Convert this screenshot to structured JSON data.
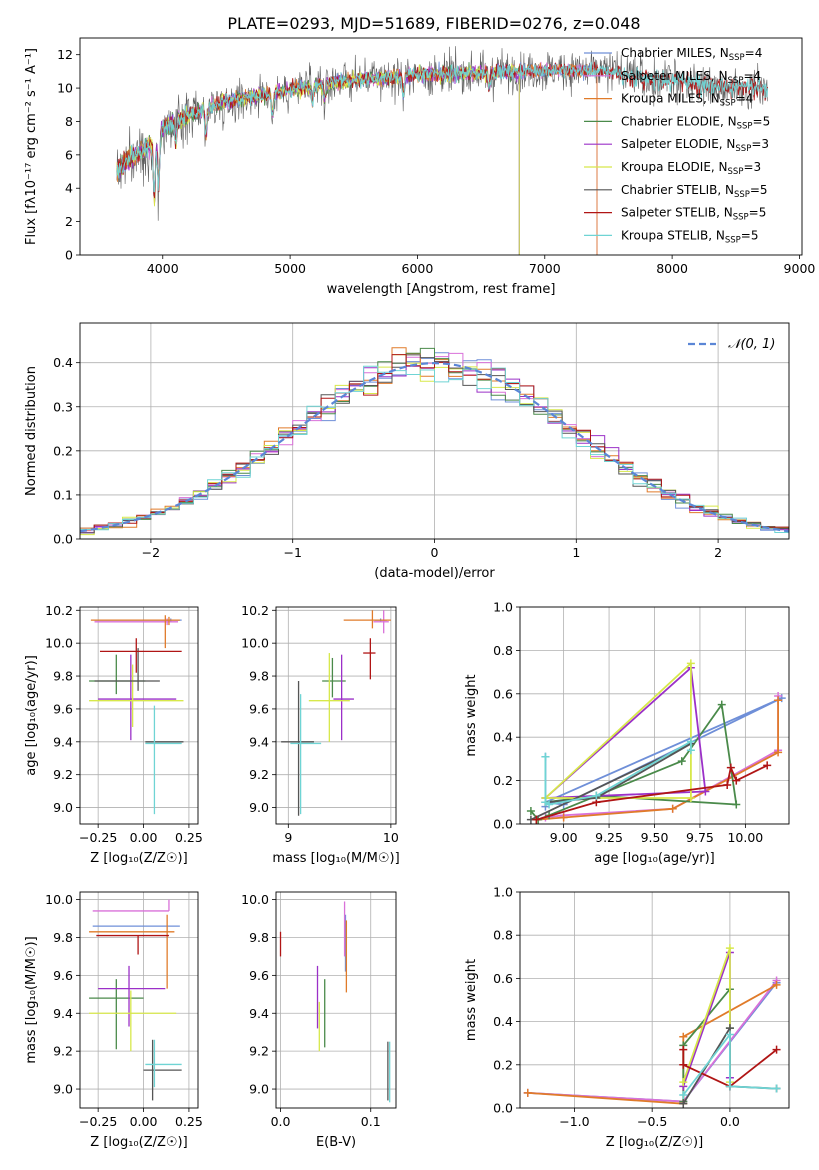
{
  "title": "PLATE=0293, MJD=51689, FIBERID=0276, z=0.048",
  "colors": {
    "Chabrier MILES": "#6f8fd8",
    "Salpeter MILES": "#d971d9",
    "Kroupa MILES": "#e07b2a",
    "Chabrier ELODIE": "#4a8a4a",
    "Salpeter ELODIE": "#9b30c8",
    "Kroupa ELODIE": "#d7e84a",
    "Chabrier STELIB": "#555555",
    "Salpeter STELIB": "#b01515",
    "Kroupa STELIB": "#6fd4d4"
  },
  "chart_data": [
    {
      "id": "spectrum",
      "type": "line",
      "title": "PLATE=0293, MJD=51689, FIBERID=0276, z=0.048",
      "xlabel": "wavelength [Angstrom, rest frame]",
      "ylabel": "Flux [fλ10⁻¹⁷ erg cm⁻² s⁻¹ A⁻¹]",
      "xlim": [
        3350,
        9020
      ],
      "ylim": [
        0,
        13
      ],
      "xticks": [
        "4000",
        "5000",
        "6000",
        "7000",
        "8000",
        "9000"
      ],
      "yticks": [
        "0",
        "2",
        "4",
        "6",
        "8",
        "10",
        "12"
      ],
      "legend_position": "right",
      "legend": [
        "Chabrier MILES, N_SSP=4",
        "Salpeter MILES, N_SSP=4",
        "Kroupa MILES, N_SSP=4",
        "Chabrier ELODIE, N_SSP=5",
        "Salpeter ELODIE, N_SSP=3",
        "Kroupa ELODIE, N_SSP=3",
        "Chabrier STELIB, N_SSP=5",
        "Salpeter STELIB, N_SSP=5",
        "Kroupa STELIB, N_SSP=5"
      ],
      "continuum": {
        "x": [
          3640,
          3700,
          3800,
          3900,
          4000,
          4200,
          4500,
          5000,
          5500,
          6000,
          6500,
          7000,
          7500,
          8000,
          8500,
          8750
        ],
        "y": [
          5.0,
          5.5,
          6.0,
          6.6,
          7.6,
          8.4,
          9.2,
          9.9,
          10.5,
          10.8,
          10.9,
          11.1,
          11.0,
          10.7,
          10.3,
          10.1
        ]
      }
    },
    {
      "id": "residuals",
      "type": "line",
      "xlabel": "(data-model)/error",
      "ylabel": "Normed distribution",
      "xlim": [
        -2.5,
        2.5
      ],
      "ylim": [
        0,
        0.49
      ],
      "xticks": [
        "-2",
        "-1",
        "0",
        "1",
        "2"
      ],
      "yticks": [
        "0.0",
        "0.1",
        "0.2",
        "0.3",
        "0.4"
      ],
      "legend": "𝒩(0, 1)",
      "legend_position": "top-right",
      "grid": true,
      "bin_width": 0.1
    },
    {
      "id": "age-vs-Z",
      "type": "scatter",
      "xlabel": "Z [log₁₀(Z/Z☉)]",
      "ylabel": "age  [log₁₀(age/yr)]",
      "xlim": [
        -0.35,
        0.3
      ],
      "ylim": [
        8.9,
        10.22
      ],
      "xticks": [
        "-0.25",
        "0.00",
        "0.25"
      ],
      "yticks": [
        "9.0",
        "9.2",
        "9.4",
        "9.6",
        "9.8",
        "10.0",
        "10.2"
      ],
      "grid": true,
      "points": [
        {
          "series": "Chabrier MILES",
          "x": 0.15,
          "y": 10.14,
          "xerr": [
            0.42,
            0.06
          ],
          "yerr": [
            0.01,
            0.01
          ]
        },
        {
          "series": "Salpeter MILES",
          "x": 0.13,
          "y": 10.13,
          "xerr": [
            0.4,
            0.06
          ],
          "yerr": [
            0.02,
            0.02
          ]
        },
        {
          "series": "Kroupa MILES",
          "x": 0.14,
          "y": 10.14,
          "xerr": [
            0.43,
            0.06
          ],
          "yerr": [
            0.03,
            0.02
          ]
        },
        {
          "series": "Kroupa MILES",
          "x": 0.12,
          "y": 10.13,
          "xerr": [
            0.0,
            0.0
          ],
          "yerr": [
            0.16,
            0.04
          ]
        },
        {
          "series": "Chabrier ELODIE",
          "x": -0.15,
          "y": 9.77,
          "xerr": [
            0.15,
            0.16
          ],
          "yerr": [
            0.08,
            0.16
          ]
        },
        {
          "series": "Salpeter ELODIE",
          "x": -0.07,
          "y": 9.66,
          "xerr": [
            0.18,
            0.25
          ],
          "yerr": [
            0.25,
            0.27
          ]
        },
        {
          "series": "Kroupa ELODIE",
          "x": -0.06,
          "y": 9.65,
          "xerr": [
            0.24,
            0.28
          ],
          "yerr": [
            0.16,
            0.22
          ]
        },
        {
          "series": "Chabrier STELIB",
          "x": -0.03,
          "y": 9.77,
          "xerr": [
            0.24,
            0.12
          ],
          "yerr": [
            0.06,
            0.2
          ]
        },
        {
          "series": "Chabrier STELIB",
          "x": 0.05,
          "y": 9.4,
          "xerr": [
            0.04,
            0.17
          ],
          "yerr": [
            0.0,
            0.0
          ]
        },
        {
          "series": "Salpeter STELIB",
          "x": -0.04,
          "y": 9.95,
          "xerr": [
            0.2,
            0.25
          ],
          "yerr": [
            0.13,
            0.08
          ]
        },
        {
          "series": "Kroupa STELIB",
          "x": 0.06,
          "y": 9.39,
          "xerr": [
            0.05,
            0.15
          ],
          "yerr": [
            0.43,
            0.23
          ]
        }
      ]
    },
    {
      "id": "age-vs-mass",
      "type": "scatter",
      "xlabel": "mass [log₁₀(M/M☉)]",
      "ylabel": "",
      "xlim": [
        8.88,
        10.05
      ],
      "ylim": [
        8.9,
        10.22
      ],
      "xticks": [
        "9",
        "10"
      ],
      "yticks": [
        "9.0",
        "9.2",
        "9.4",
        "9.6",
        "9.8",
        "10.0",
        "10.2"
      ],
      "grid": true,
      "points": [
        {
          "series": "Chabrier MILES",
          "x": 9.9,
          "y": 10.14,
          "xerr": [
            0.06,
            0.06
          ],
          "yerr": [
            0.01,
            0.01
          ]
        },
        {
          "series": "Salpeter MILES",
          "x": 9.93,
          "y": 10.13,
          "xerr": [
            0.1,
            0.05
          ],
          "yerr": [
            0.07,
            0.07
          ]
        },
        {
          "series": "Kroupa MILES",
          "x": 9.82,
          "y": 10.14,
          "xerr": [
            0.28,
            0.18
          ],
          "yerr": [
            0.05,
            0.06
          ]
        },
        {
          "series": "Chabrier ELODIE",
          "x": 9.43,
          "y": 9.77,
          "xerr": [
            0.1,
            0.13
          ],
          "yerr": [
            0.1,
            0.14
          ]
        },
        {
          "series": "Salpeter ELODIE",
          "x": 9.52,
          "y": 9.66,
          "xerr": [
            0.08,
            0.12
          ],
          "yerr": [
            0.25,
            0.27
          ]
        },
        {
          "series": "Kroupa ELODIE",
          "x": 9.4,
          "y": 9.65,
          "xerr": [
            0.2,
            0.2
          ],
          "yerr": [
            0.25,
            0.29
          ]
        },
        {
          "series": "Chabrier STELIB",
          "x": 9.1,
          "y": 9.4,
          "xerr": [
            0.17,
            0.15
          ],
          "yerr": [
            0.45,
            0.37
          ]
        },
        {
          "series": "Salpeter STELIB",
          "x": 9.8,
          "y": 9.94,
          "xerr": [
            0.07,
            0.05
          ],
          "yerr": [
            0.16,
            0.09
          ]
        },
        {
          "series": "Kroupa STELIB",
          "x": 9.12,
          "y": 9.39,
          "xerr": [
            0.1,
            0.2
          ],
          "yerr": [
            0.43,
            0.3
          ]
        }
      ]
    },
    {
      "id": "weight-vs-age",
      "type": "line",
      "xlabel": "age  [log₁₀(age/yr)]",
      "ylabel": "mass weight",
      "xlim": [
        8.76,
        10.24
      ],
      "ylim": [
        0,
        1.0
      ],
      "xticks": [
        "9.00",
        "9.25",
        "9.50",
        "9.75",
        "10.00"
      ],
      "yticks": [
        "0.0",
        "0.2",
        "0.4",
        "0.6",
        "0.8",
        "1.0"
      ],
      "grid": true,
      "series": [
        {
          "name": "Chabrier MILES",
          "x": [
            8.9,
            8.9,
            8.9,
            9.0,
            10.2,
            8.9
          ],
          "y": [
            0.31,
            0.08,
            0.1,
            0.09,
            0.58,
            0.1
          ]
        },
        {
          "name": "Salpeter MILES",
          "x": [
            8.9,
            9.0,
            9.6,
            10.18,
            10.18
          ],
          "y": [
            0.03,
            0.04,
            0.07,
            0.34,
            0.59
          ]
        },
        {
          "name": "Kroupa MILES",
          "x": [
            8.85,
            9.0,
            9.6,
            10.18,
            10.18
          ],
          "y": [
            0.02,
            0.03,
            0.07,
            0.33,
            0.57
          ]
        },
        {
          "name": "Chabrier ELODIE",
          "x": [
            8.82,
            8.86,
            8.92,
            9.65,
            9.87,
            9.95,
            9.18,
            8.9
          ],
          "y": [
            0.06,
            0.02,
            0.04,
            0.29,
            0.55,
            0.09,
            0.13,
            0.1
          ]
        },
        {
          "name": "Salpeter ELODIE",
          "x": [
            8.9,
            9.7,
            9.78,
            8.9
          ],
          "y": [
            0.12,
            0.72,
            0.15,
            0.12
          ]
        },
        {
          "name": "Kroupa ELODIE",
          "x": [
            8.9,
            9.7,
            9.7,
            8.9
          ],
          "y": [
            0.12,
            0.74,
            0.12,
            0.12
          ]
        },
        {
          "name": "Chabrier STELIB",
          "x": [
            8.82,
            9.7,
            9.18,
            8.9
          ],
          "y": [
            0.02,
            0.37,
            0.12,
            0.1
          ]
        },
        {
          "name": "Salpeter STELIB",
          "x": [
            8.85,
            9.18,
            9.9,
            9.92,
            9.95,
            10.12
          ],
          "y": [
            0.02,
            0.1,
            0.18,
            0.26,
            0.2,
            0.27
          ]
        },
        {
          "name": "Kroupa STELIB",
          "x": [
            8.9,
            8.9,
            8.92,
            9.18,
            9.7,
            9.7
          ],
          "y": [
            0.31,
            0.1,
            0.09,
            0.13,
            0.38,
            0.34
          ]
        }
      ]
    },
    {
      "id": "mass-vs-Z",
      "type": "scatter",
      "xlabel": "Z [log₁₀(Z/Z☉)]",
      "ylabel": "mass [log₁₀(M/M☉)]",
      "xlim": [
        -0.35,
        0.3
      ],
      "ylim": [
        8.9,
        10.04
      ],
      "xticks": [
        "-0.25",
        "0.00",
        "0.25"
      ],
      "yticks": [
        "9.0",
        "9.2",
        "9.4",
        "9.6",
        "9.8",
        "10.0"
      ],
      "grid": true,
      "points": [
        {
          "series": "Chabrier MILES",
          "x": 0.15,
          "y": 9.86,
          "xerr": [
            0.43,
            0.05
          ],
          "yerr": [
            0.0,
            0.0
          ]
        },
        {
          "series": "Salpeter MILES",
          "x": 0.14,
          "y": 9.94,
          "xerr": [
            0.42,
            0.0
          ],
          "yerr": [
            0.0,
            0.06
          ]
        },
        {
          "series": "Kroupa MILES",
          "x": 0.13,
          "y": 9.83,
          "xerr": [
            0.43,
            0.04
          ],
          "yerr": [
            0.3,
            0.09
          ]
        },
        {
          "series": "Chabrier ELODIE",
          "x": -0.15,
          "y": 9.48,
          "xerr": [
            0.15,
            0.15
          ],
          "yerr": [
            0.27,
            0.1
          ]
        },
        {
          "series": "Salpeter ELODIE",
          "x": -0.08,
          "y": 9.53,
          "xerr": [
            0.17,
            0.2
          ],
          "yerr": [
            0.2,
            0.12
          ]
        },
        {
          "series": "Kroupa ELODIE",
          "x": -0.07,
          "y": 9.4,
          "xerr": [
            0.23,
            0.25
          ],
          "yerr": [
            0.2,
            0.12
          ]
        },
        {
          "series": "Chabrier STELIB",
          "x": 0.05,
          "y": 9.1,
          "xerr": [
            0.05,
            0.16
          ],
          "yerr": [
            0.16,
            0.16
          ]
        },
        {
          "series": "Salpeter STELIB",
          "x": -0.03,
          "y": 9.81,
          "xerr": [
            0.23,
            0.17
          ],
          "yerr": [
            0.1,
            0.0
          ]
        },
        {
          "series": "Kroupa STELIB",
          "x": 0.06,
          "y": 9.13,
          "xerr": [
            0.05,
            0.15
          ],
          "yerr": [
            0.12,
            0.13
          ]
        }
      ]
    },
    {
      "id": "mass-vs-ebv",
      "type": "scatter",
      "xlabel": "E(B-V)",
      "ylabel": "",
      "xlim": [
        -0.005,
        0.128
      ],
      "ylim": [
        8.9,
        10.04
      ],
      "xticks": [
        "0.0",
        "0.1"
      ],
      "yticks": [
        "9.0",
        "9.2",
        "9.4",
        "9.6",
        "9.8",
        "10.0"
      ],
      "grid": true,
      "points": [
        {
          "series": "Chabrier MILES",
          "x": 0.072,
          "y": 9.8,
          "xerr": [
            0.0,
            0.0
          ],
          "yerr": [
            0.18,
            0.12
          ]
        },
        {
          "series": "Salpeter MILES",
          "x": 0.071,
          "y": 9.9,
          "xerr": [
            0.0,
            0.0
          ],
          "yerr": [
            0.2,
            0.09
          ]
        },
        {
          "series": "Kroupa MILES",
          "x": 0.073,
          "y": 9.73,
          "xerr": [
            0.0,
            0.0
          ],
          "yerr": [
            0.22,
            0.16
          ]
        },
        {
          "series": "Chabrier ELODIE",
          "x": 0.049,
          "y": 9.42,
          "xerr": [
            0.0,
            0.0
          ],
          "yerr": [
            0.2,
            0.16
          ]
        },
        {
          "series": "Salpeter ELODIE",
          "x": 0.041,
          "y": 9.48,
          "xerr": [
            0.0,
            0.0
          ],
          "yerr": [
            0.16,
            0.17
          ]
        },
        {
          "series": "Kroupa ELODIE",
          "x": 0.043,
          "y": 9.3,
          "xerr": [
            0.0,
            0.0
          ],
          "yerr": [
            0.1,
            0.16
          ]
        },
        {
          "series": "Chabrier STELIB",
          "x": 0.119,
          "y": 9.08,
          "xerr": [
            0.0,
            0.0
          ],
          "yerr": [
            0.14,
            0.17
          ]
        },
        {
          "series": "Salpeter STELIB",
          "x": 0.0,
          "y": 9.76,
          "xerr": [
            0.0,
            0.0
          ],
          "yerr": [
            0.06,
            0.07
          ]
        },
        {
          "series": "Kroupa STELIB",
          "x": 0.121,
          "y": 9.1,
          "xerr": [
            0.0,
            0.0
          ],
          "yerr": [
            0.17,
            0.15
          ]
        }
      ]
    },
    {
      "id": "weight-vs-Z",
      "type": "line",
      "xlabel": "Z [log₁₀(Z/Z☉)]",
      "ylabel": "mass weight",
      "xlim": [
        -1.35,
        0.38
      ],
      "ylim": [
        0,
        1.0
      ],
      "xticks": [
        "-1.0",
        "-0.5",
        "0.0"
      ],
      "yticks": [
        "0.0",
        "0.2",
        "0.4",
        "0.6",
        "0.8",
        "1.0"
      ],
      "grid": true,
      "series": [
        {
          "name": "Chabrier MILES",
          "x": [
            -1.3,
            -0.3,
            0.3
          ],
          "y": [
            0.07,
            0.03,
            0.58
          ]
        },
        {
          "name": "Salpeter MILES",
          "x": [
            -1.3,
            -0.3,
            0.3
          ],
          "y": [
            0.07,
            0.03,
            0.59
          ]
        },
        {
          "name": "Kroupa MILES",
          "x": [
            -1.3,
            -0.3,
            -0.3,
            0.3
          ],
          "y": [
            0.07,
            0.02,
            0.33,
            0.57
          ]
        },
        {
          "name": "Chabrier ELODIE",
          "x": [
            -0.3,
            -0.3,
            0.0,
            0.0
          ],
          "y": [
            0.03,
            0.29,
            0.55,
            0.37
          ]
        },
        {
          "name": "Salpeter ELODIE",
          "x": [
            -0.3,
            0.0,
            0.0
          ],
          "y": [
            0.1,
            0.72,
            0.14
          ]
        },
        {
          "name": "Kroupa ELODIE",
          "x": [
            -0.3,
            0.0,
            0.0
          ],
          "y": [
            0.12,
            0.74,
            0.12
          ]
        },
        {
          "name": "Chabrier STELIB",
          "x": [
            -0.3,
            0.0,
            0.0,
            0.3
          ],
          "y": [
            0.02,
            0.37,
            0.1,
            0.09
          ]
        },
        {
          "name": "Salpeter STELIB",
          "x": [
            -0.3,
            -0.3,
            0.0,
            0.3
          ],
          "y": [
            0.27,
            0.2,
            0.1,
            0.27
          ]
        },
        {
          "name": "Kroupa STELIB",
          "x": [
            -0.3,
            0.0,
            0.0,
            0.3
          ],
          "y": [
            0.06,
            0.34,
            0.1,
            0.09
          ]
        }
      ]
    }
  ]
}
